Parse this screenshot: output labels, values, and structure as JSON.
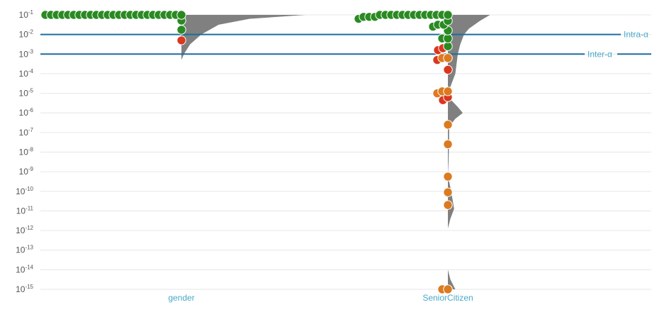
{
  "chart_data": {
    "type": "scatter",
    "subtype": "beeswarm-with-violin",
    "y_scale": "log10",
    "ylim_exponent": [
      -15,
      -1
    ],
    "y_ticks_exponent": [
      -1,
      -2,
      -3,
      -4,
      -5,
      -6,
      -7,
      -8,
      -9,
      -10,
      -11,
      -12,
      -13,
      -14,
      -15
    ],
    "y_tick_base": "10",
    "grid": true,
    "thresholds": [
      {
        "label": "Intra-α",
        "exponent": -2,
        "color": "#1a6e9e"
      },
      {
        "label": "Inter-α",
        "exponent": -3,
        "color": "#1a6e9e"
      }
    ],
    "colors": {
      "green": "#2a8a22",
      "red": "#d9381e",
      "orange": "#dc7a20",
      "violin": "#808080",
      "label": "#4aa8c8"
    },
    "categories": [
      {
        "name": "gender",
        "points": [
          {
            "e": -1.0,
            "c": "green",
            "n": 25
          },
          {
            "e": -1.29,
            "c": "green",
            "n": 1
          },
          {
            "e": -1.76,
            "c": "green",
            "n": 1
          },
          {
            "e": -2.3,
            "c": "red",
            "n": 1
          }
        ],
        "density": [
          [
            [
              -1.0,
              1.0
            ],
            [
              -1.2,
              0.55
            ],
            [
              -1.5,
              0.3
            ],
            [
              -2.0,
              0.16
            ],
            [
              -2.5,
              0.07
            ],
            [
              -3.0,
              0.02
            ],
            [
              -3.3,
              0.0
            ]
          ]
        ]
      },
      {
        "name": "SeniorCitizen",
        "points": [
          {
            "e": -1.0,
            "c": "green",
            "n": 13
          },
          {
            "e": -1.1,
            "c": "green",
            "n": 3
          },
          {
            "e": -1.2,
            "c": "green",
            "n": 1
          },
          {
            "e": -1.3,
            "c": "green",
            "n": 1
          },
          {
            "e": -1.5,
            "c": "green",
            "n": 2
          },
          {
            "e": -1.6,
            "c": "green",
            "n": 1
          },
          {
            "e": -1.8,
            "c": "green",
            "n": 1
          },
          {
            "e": -2.2,
            "c": "green",
            "n": 2
          },
          {
            "e": -2.6,
            "c": "green",
            "n": 1
          },
          {
            "e": -2.7,
            "c": "red",
            "n": 1
          },
          {
            "e": -2.8,
            "c": "red",
            "n": 1
          },
          {
            "e": -3.2,
            "c": "orange",
            "n": 2
          },
          {
            "e": -3.3,
            "c": "red",
            "n": 1
          },
          {
            "e": -3.8,
            "c": "red",
            "n": 1
          },
          {
            "e": -4.9,
            "c": "orange",
            "n": 2
          },
          {
            "e": -5.0,
            "c": "orange",
            "n": 1
          },
          {
            "e": -5.2,
            "c": "red",
            "n": 1
          },
          {
            "e": -5.35,
            "c": "red",
            "n": 1
          },
          {
            "e": -6.6,
            "c": "orange",
            "n": 1
          },
          {
            "e": -7.6,
            "c": "orange",
            "n": 1
          },
          {
            "e": -9.25,
            "c": "orange",
            "n": 1
          },
          {
            "e": -10.05,
            "c": "orange",
            "n": 1
          },
          {
            "e": -10.7,
            "c": "orange",
            "n": 1
          },
          {
            "e": -15.0,
            "c": "orange",
            "n": 2
          }
        ],
        "density": [
          [
            [
              -1.0,
              0.34
            ],
            [
              -1.3,
              0.26
            ],
            [
              -1.7,
              0.17
            ],
            [
              -2.0,
              0.13
            ],
            [
              -2.5,
              0.1
            ],
            [
              -3.0,
              0.08
            ],
            [
              -3.5,
              0.07
            ],
            [
              -4.0,
              0.06
            ],
            [
              -4.5,
              0.03
            ],
            [
              -5.0,
              0.0
            ],
            [
              -5.3,
              0.02
            ],
            [
              -5.7,
              0.08
            ],
            [
              -6.0,
              0.12
            ],
            [
              -6.3,
              0.06
            ],
            [
              -6.7,
              0.01
            ],
            [
              -7.5,
              0.01
            ],
            [
              -8.5,
              0.005
            ],
            [
              -9.2,
              0.0
            ],
            [
              -9.8,
              0.02
            ],
            [
              -10.5,
              0.04
            ],
            [
              -10.9,
              0.05
            ],
            [
              -11.4,
              0.02
            ],
            [
              -11.9,
              0.0
            ]
          ],
          [
            [
              -14.0,
              0.0
            ],
            [
              -14.5,
              0.02
            ],
            [
              -15.0,
              0.06
            ]
          ]
        ]
      }
    ]
  }
}
